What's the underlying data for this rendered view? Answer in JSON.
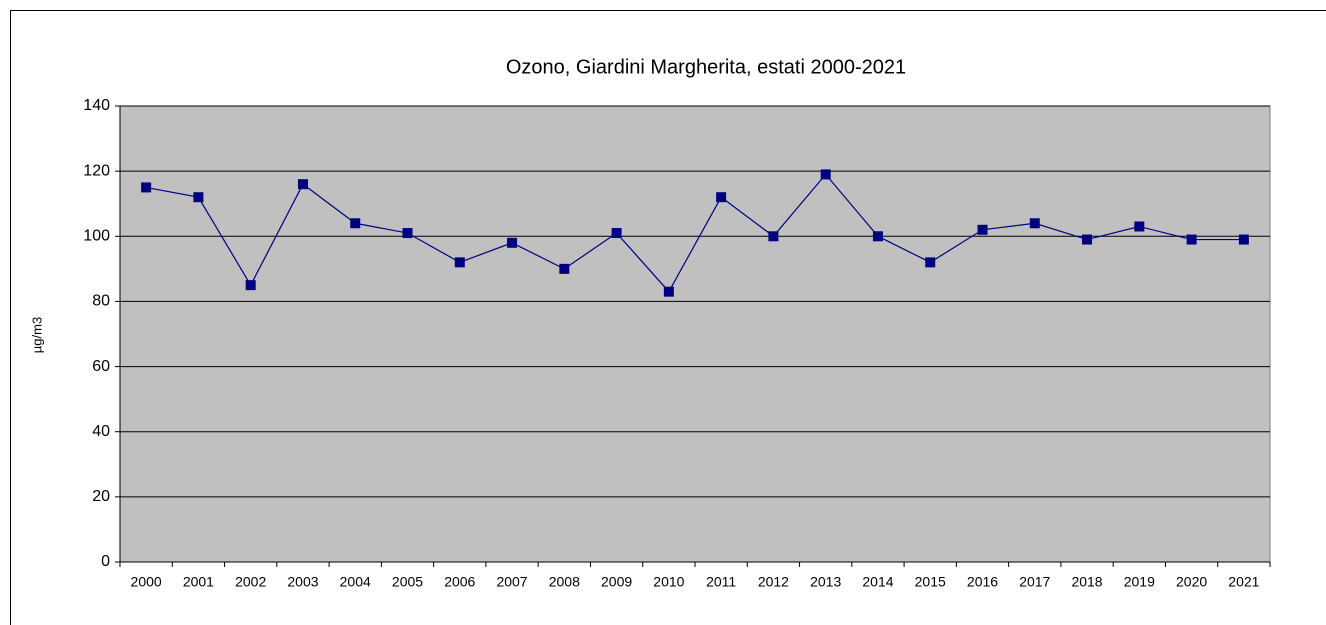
{
  "chart_data": {
    "type": "line",
    "title": "Ozono, Giardini Margherita, estati 2000-2021",
    "y_label": "µg/m3",
    "categories": [
      "2000",
      "2001",
      "2002",
      "2003",
      "2004",
      "2005",
      "2006",
      "2007",
      "2008",
      "2009",
      "2010",
      "2011",
      "2012",
      "2013",
      "2014",
      "2015",
      "2016",
      "2017",
      "2018",
      "2019",
      "2020",
      "2021"
    ],
    "series": [
      {
        "name": "Ozono",
        "color": "#000080",
        "values": [
          115,
          112,
          85,
          116,
          104,
          101,
          92,
          98,
          90,
          101,
          83,
          112,
          100,
          119,
          100,
          92,
          102,
          104,
          99,
          103,
          99,
          99
        ]
      }
    ],
    "ylim": [
      0,
      140
    ],
    "yticks": [
      0,
      20,
      40,
      60,
      80,
      100,
      120,
      140
    ],
    "grid": true,
    "plot_background": "#c0c0c0"
  }
}
